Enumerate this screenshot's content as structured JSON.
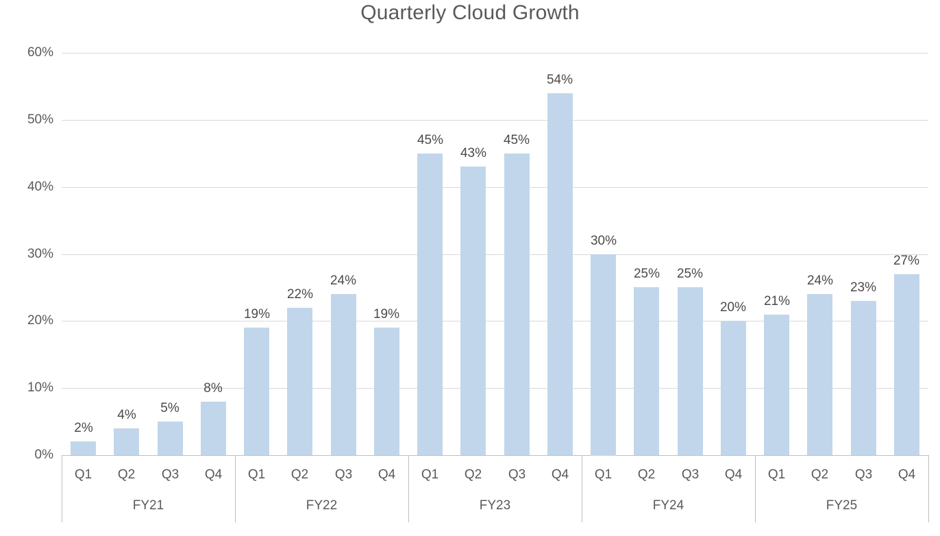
{
  "chart_data": {
    "type": "bar",
    "title": "Quarterly Cloud Growth",
    "categories": [
      "Q1",
      "Q2",
      "Q3",
      "Q4"
    ],
    "groups": [
      {
        "label": "FY21",
        "values": [
          2,
          4,
          5,
          8
        ]
      },
      {
        "label": "FY22",
        "values": [
          19,
          22,
          24,
          19
        ]
      },
      {
        "label": "FY23",
        "values": [
          45,
          43,
          45,
          54
        ]
      },
      {
        "label": "FY24",
        "values": [
          30,
          25,
          25,
          20
        ]
      },
      {
        "label": "FY25",
        "values": [
          21,
          24,
          23,
          27
        ]
      }
    ],
    "data_labels": [
      "2%",
      "4%",
      "5%",
      "8%",
      "19%",
      "22%",
      "24%",
      "19%",
      "45%",
      "43%",
      "45%",
      "54%",
      "30%",
      "25%",
      "25%",
      "20%",
      "21%",
      "24%",
      "23%",
      "27%"
    ],
    "y_ticks": [
      "0%",
      "10%",
      "20%",
      "30%",
      "40%",
      "50%",
      "60%"
    ],
    "ylim": [
      0,
      60
    ],
    "y_tick_step": 10,
    "data_label_suffix": "%",
    "grid": "horizontal",
    "legend": "none",
    "xlabel": "",
    "ylabel": "",
    "colors": {
      "bar_fill": "#c1d6ea",
      "gridline": "#d9d9d9",
      "axis_line": "#bfbfbf",
      "axis_text": "#595959",
      "data_label_text": "#4a4a4a",
      "title_text": "#595959",
      "background": "#ffffff"
    }
  }
}
